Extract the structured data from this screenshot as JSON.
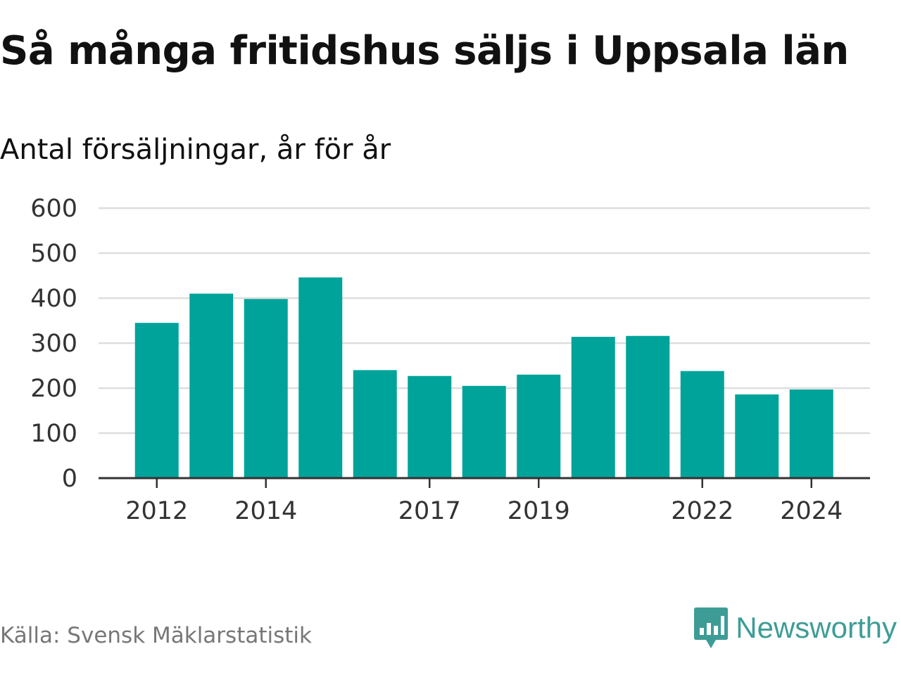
{
  "header": {
    "title": "Så många fritidshus säljs i Uppsala län",
    "subtitle": "Antal försäljningar, år för år"
  },
  "footer": {
    "source": "Källa: Svensk Mäklarstatistik",
    "brand": "Newsworthy",
    "brand_icon": "newsworthy-logo-icon"
  },
  "colors": {
    "bar": "#00a39a",
    "brand": "#3d9d96",
    "grid": "#dddddd",
    "axis": "#333333"
  },
  "chart_data": {
    "type": "bar",
    "categories": [
      "2012",
      "2013",
      "2014",
      "2015",
      "2016",
      "2017",
      "2018",
      "2019",
      "2020",
      "2021",
      "2022",
      "2023",
      "2024"
    ],
    "values": [
      345,
      410,
      398,
      446,
      240,
      227,
      205,
      230,
      314,
      316,
      238,
      186,
      197
    ],
    "x_tick_labels": [
      "2012",
      "2014",
      "2017",
      "2019",
      "2022",
      "2024"
    ],
    "y_ticks": [
      0,
      100,
      200,
      300,
      400,
      500,
      600
    ],
    "ylim": [
      0,
      600
    ],
    "grid": true,
    "legend": "none"
  }
}
